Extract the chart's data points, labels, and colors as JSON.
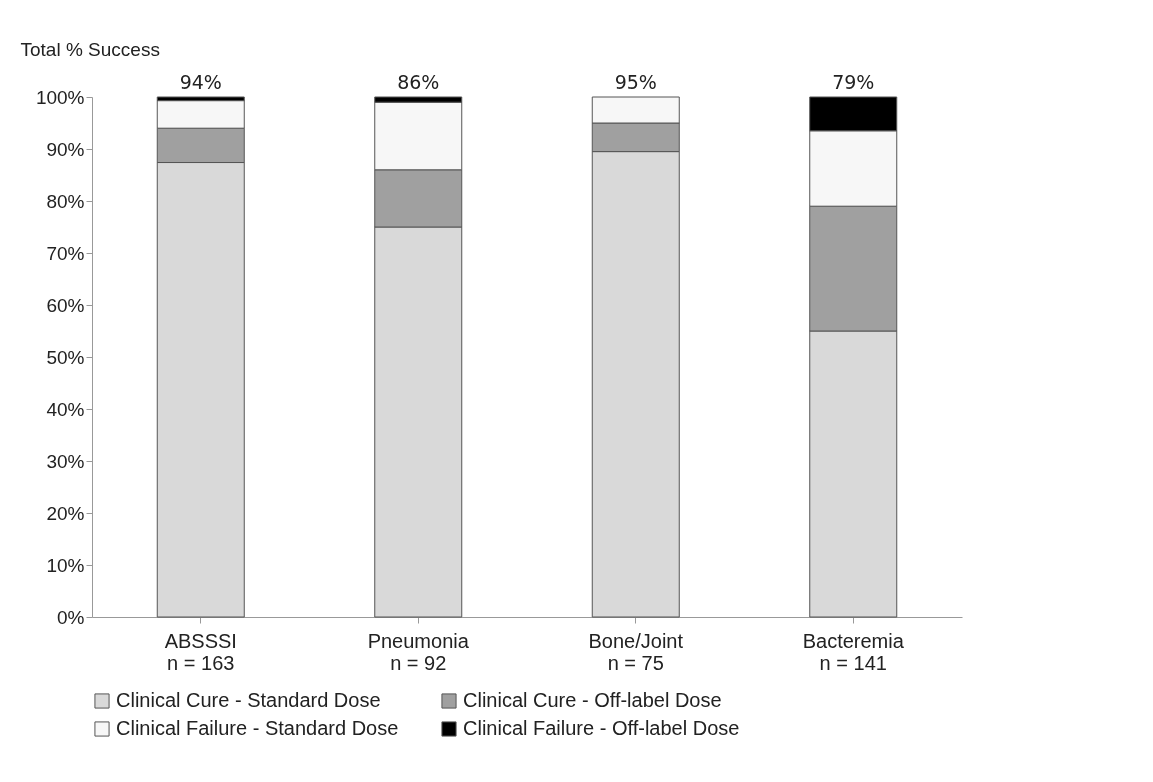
{
  "chart_data": {
    "type": "bar",
    "stacked": true,
    "ylabel": "Total % Success",
    "categories": [
      "ABSSSI\nn = 163",
      "Pneumonia\nn = 92",
      "Bone/Joint\nn = 75",
      "Bacteremia\nn = 141"
    ],
    "series": [
      {
        "name": "Clinical Cure - Standard Dose",
        "color": "#d9d9d9",
        "values": [
          87.4,
          75,
          89.5,
          55
        ]
      },
      {
        "name": "Clinical Cure - Off-label Dose",
        "color": "#a0a0a0",
        "values": [
          6.6,
          11,
          5.5,
          24
        ]
      },
      {
        "name": "Clinical Failure - Standard Dose",
        "color": "#f7f7f7",
        "values": [
          5.3,
          13,
          5,
          14.5
        ]
      },
      {
        "name": "Clinical Failure - Off-label Dose",
        "color": "#000000",
        "values": [
          0.7,
          1,
          0,
          6.5
        ]
      }
    ],
    "annotations": [
      {
        "text": "94%",
        "x": "ABSSSI\nn = 163",
        "y": 100
      },
      {
        "text": "86%",
        "x": "Pneumonia\nn = 92",
        "y": 100
      },
      {
        "text": "95%",
        "x": "Bone/Joint\nn = 75",
        "y": 100
      },
      {
        "text": "79%",
        "x": "Bacteremia\nn = 141",
        "y": 100
      }
    ],
    "ylim": [
      0,
      100
    ],
    "yticks": [
      {
        "value": 0,
        "label": "0%"
      },
      {
        "value": 10,
        "label": "10%"
      },
      {
        "value": 20,
        "label": "20%"
      },
      {
        "value": 30,
        "label": "30%"
      },
      {
        "value": 40,
        "label": "40%"
      },
      {
        "value": 50,
        "label": "50%"
      },
      {
        "value": 60,
        "label": "60%"
      },
      {
        "value": 70,
        "label": "70%"
      },
      {
        "value": 80,
        "label": "80%"
      },
      {
        "value": 90,
        "label": "90%"
      },
      {
        "value": 100,
        "label": "100%"
      }
    ],
    "grid": false,
    "legend": "bottom"
  }
}
